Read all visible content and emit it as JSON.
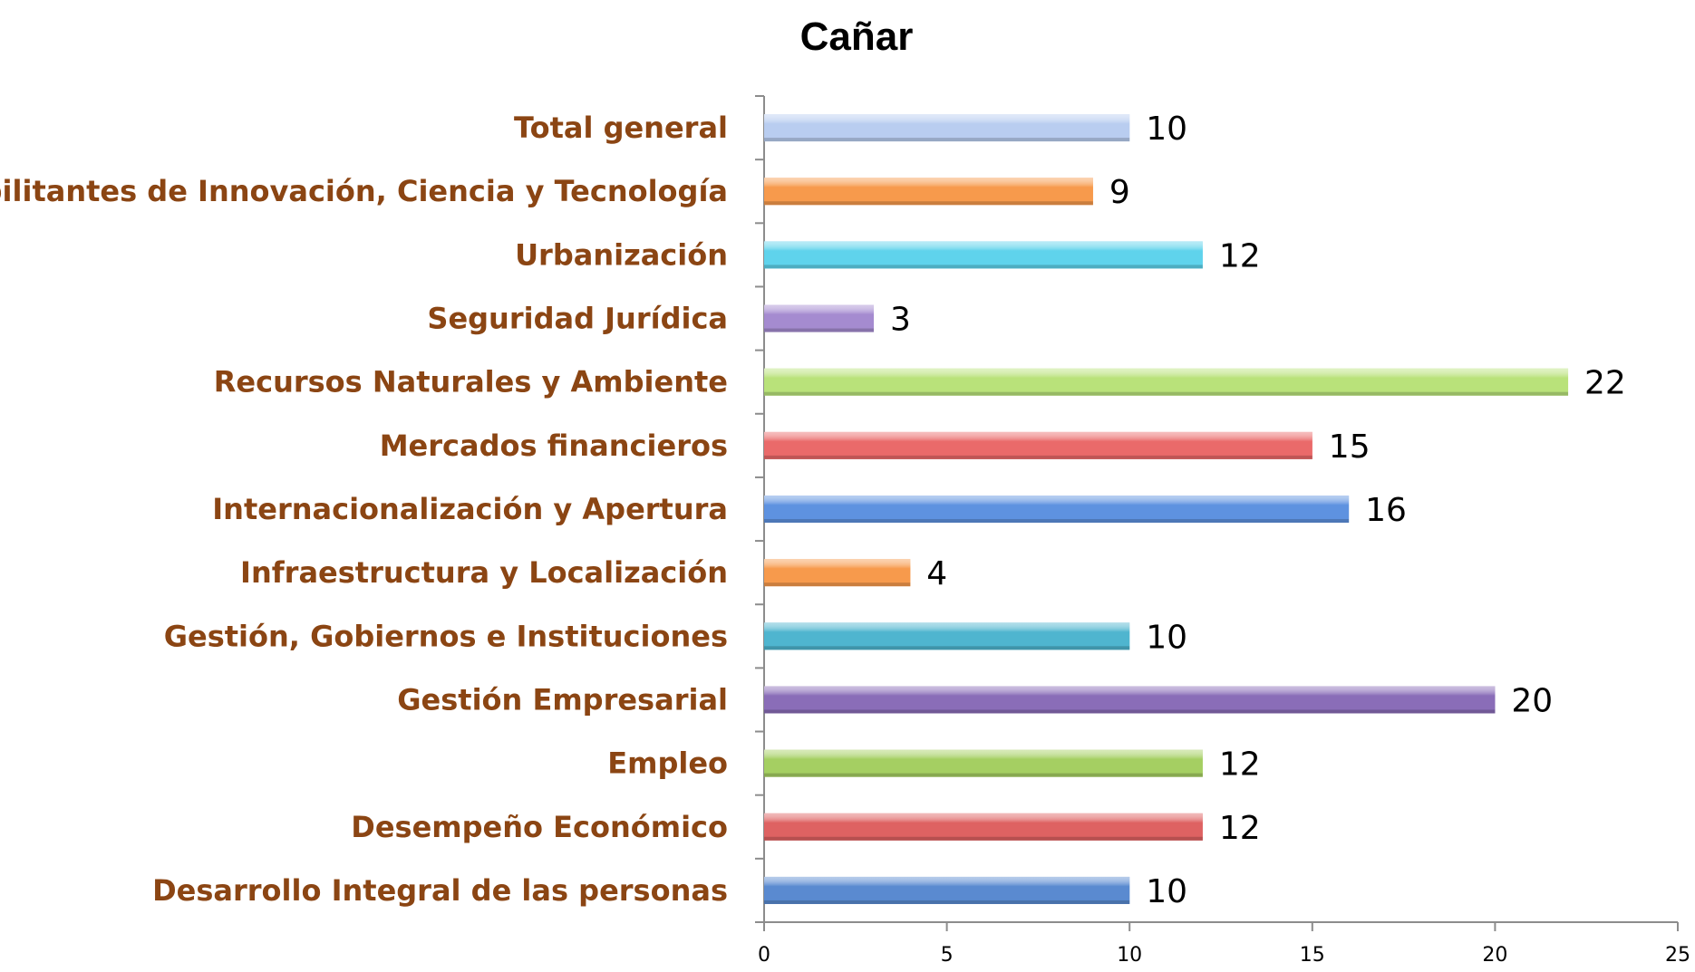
{
  "chart_data": {
    "type": "bar",
    "orientation": "horizontal",
    "title": "Cañar",
    "xlabel": "",
    "ylabel": "",
    "xlim": [
      0,
      25
    ],
    "x_ticks": [
      "0",
      "5",
      "10",
      "15",
      "20",
      "25"
    ],
    "grid": false,
    "legend": "none",
    "categories": [
      "Total general",
      "Habilitantes de Innovación, Ciencia y Tecnología",
      "Urbanización",
      "Seguridad Jurídica",
      "Recursos Naturales y Ambiente",
      "Mercados financieros",
      "Internacionalización y Apertura",
      "Infraestructura y Localización",
      "Gestión, Gobiernos e Instituciones",
      "Gestión Empresarial",
      "Empleo",
      "Desempeño Económico",
      "Desarrollo Integral de las personas"
    ],
    "values": [
      10,
      9,
      12,
      3,
      22,
      15,
      16,
      4,
      10,
      20,
      12,
      12,
      10
    ],
    "bar_colors": [
      "#b9cdf0",
      "#f79a4c",
      "#5fd3ec",
      "#a58bd0",
      "#b9e27a",
      "#ea6a6a",
      "#5e92e0",
      "#f79a4c",
      "#4fb5cf",
      "#8a6db8",
      "#a5cf62",
      "#de6262",
      "#5a8ad0"
    ],
    "label_color": "#8B4513"
  }
}
